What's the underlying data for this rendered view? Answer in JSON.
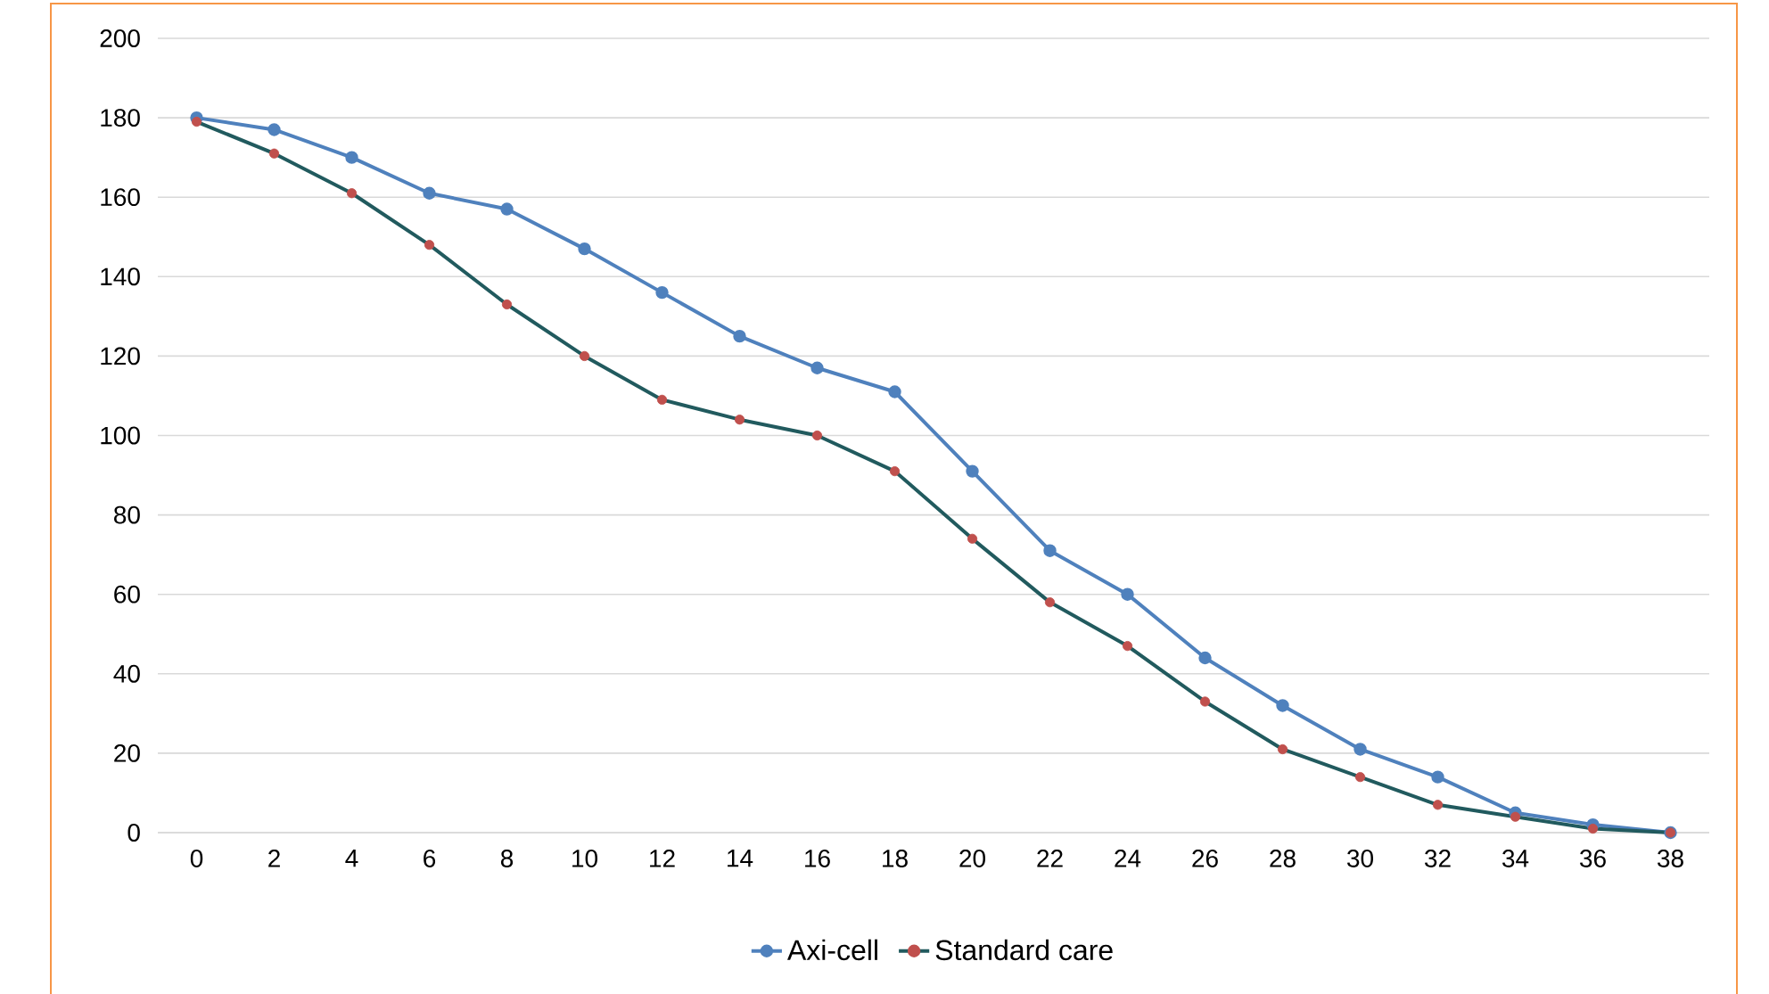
{
  "chart_data": {
    "type": "line",
    "categories": [
      "0",
      "2",
      "4",
      "6",
      "8",
      "10",
      "12",
      "14",
      "16",
      "18",
      "20",
      "22",
      "24",
      "26",
      "28",
      "30",
      "32",
      "34",
      "36",
      "38"
    ],
    "series": [
      {
        "name": "Axi-cell",
        "color": "#4f81bd",
        "values": [
          180,
          177,
          170,
          161,
          157,
          147,
          136,
          125,
          117,
          111,
          91,
          71,
          60,
          44,
          32,
          21,
          14,
          5,
          2,
          0
        ]
      },
      {
        "name": "Standard care",
        "color": "#215a5e",
        "colors": [
          "#c0504d",
          "#c0504d",
          "#c0504d",
          "#c0504d",
          "#c0504d",
          "#c0504d",
          "#c0504d",
          "#c0504d",
          "#c0504d",
          "#c0504d",
          "#c0504d",
          "#c0504d",
          "#c0504d",
          "#c0504d",
          "#c0504d",
          "#c0504d",
          "#c0504d",
          "#c0504d",
          "#c0504d",
          "#c0504d"
        ],
        "values": [
          179,
          171,
          161,
          148,
          133,
          120,
          109,
          104,
          100,
          91,
          74,
          58,
          47,
          33,
          21,
          14,
          7,
          4,
          1,
          0
        ]
      }
    ],
    "ylim": [
      0,
      200
    ],
    "yticks": [
      0,
      20,
      40,
      60,
      80,
      100,
      120,
      140,
      160,
      180,
      200
    ],
    "grid": "y",
    "legend": "bottom",
    "marker": "circle",
    "line_style": "solid"
  }
}
